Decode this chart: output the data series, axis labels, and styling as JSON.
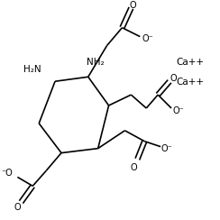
{
  "bg_color": "#ffffff",
  "line_color": "#000000",
  "text_color": "#000000",
  "figsize": [
    2.44,
    2.44
  ],
  "dpi": 100,
  "ca1": "Ca++",
  "ca2": "Ca++",
  "nh2_left": "H₂N",
  "nh2_right": "NH₂",
  "lw": 1.2
}
